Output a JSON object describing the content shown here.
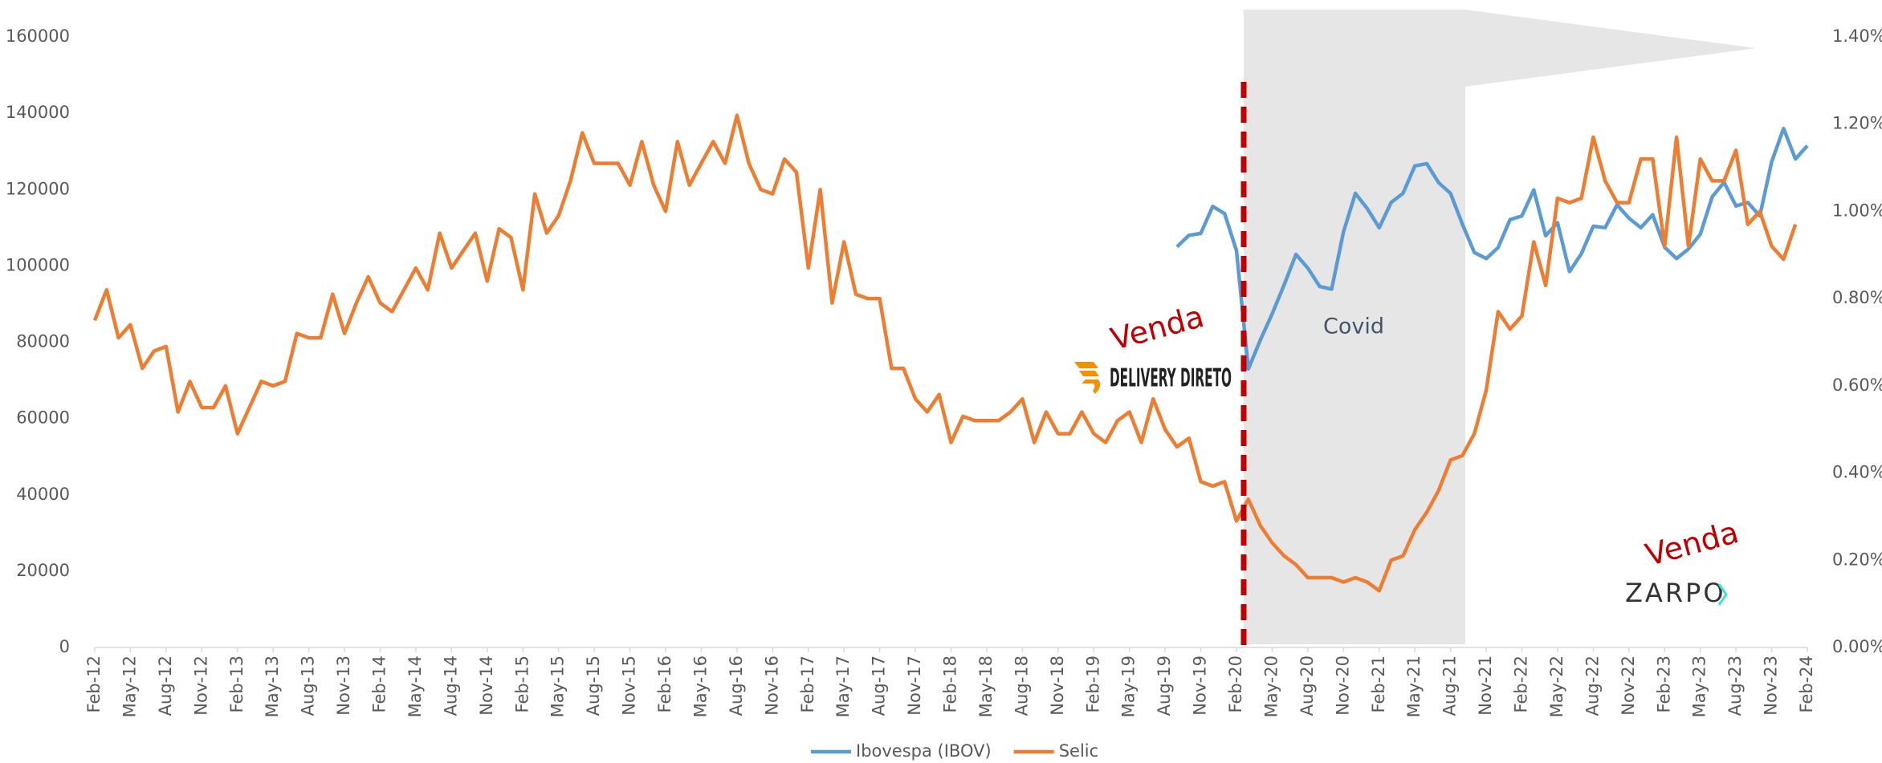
{
  "chart_data": {
    "type": "line",
    "categories": [
      "Feb-12",
      null,
      null,
      "May-12",
      null,
      null,
      "Aug-12",
      null,
      null,
      "Nov-12",
      null,
      null,
      "Feb-13",
      null,
      null,
      "May-13",
      null,
      null,
      "Aug-13",
      null,
      null,
      "Nov-13",
      null,
      null,
      "Feb-14",
      null,
      null,
      "May-14",
      null,
      null,
      "Aug-14",
      null,
      null,
      "Nov-14",
      null,
      null,
      "Feb-15",
      null,
      null,
      "May-15",
      null,
      null,
      "Aug-15",
      null,
      null,
      "Nov-15",
      null,
      null,
      "Feb-16",
      null,
      null,
      "May-16",
      null,
      null,
      "Aug-16",
      null,
      null,
      "Nov-16",
      null,
      null,
      "Feb-17",
      null,
      null,
      "May-17",
      null,
      null,
      "Aug-17",
      null,
      null,
      "Nov-17",
      null,
      null,
      "Feb-18",
      null,
      null,
      "May-18",
      null,
      null,
      "Aug-18",
      null,
      null,
      "Nov-18",
      null,
      null,
      "Feb-19",
      null,
      null,
      "May-19",
      null,
      null,
      "Aug-19",
      null,
      null,
      "Nov-19",
      null,
      null,
      "Feb-20",
      null,
      null,
      "May-20",
      null,
      null,
      "Aug-20",
      null,
      null,
      "Nov-20",
      null,
      null,
      "Feb-21",
      null,
      null,
      "May-21",
      null,
      null,
      "Aug-21",
      null,
      null,
      "Nov-21",
      null,
      null,
      "Feb-22",
      null,
      null,
      "May-22",
      null,
      null,
      "Aug-22",
      null,
      null,
      "Nov-22",
      null,
      null,
      "Feb-23",
      null,
      null,
      "May-23",
      null,
      null,
      "Aug-23",
      null,
      null,
      "Nov-23",
      null,
      null,
      "Feb-24"
    ],
    "series": [
      {
        "name": "Ibovespa (IBOV)",
        "color": "#5b9bd5",
        "values": [
          null,
          null,
          null,
          null,
          null,
          null,
          null,
          null,
          null,
          null,
          null,
          null,
          null,
          null,
          null,
          null,
          null,
          null,
          null,
          null,
          null,
          null,
          null,
          null,
          null,
          null,
          null,
          null,
          null,
          null,
          null,
          null,
          null,
          null,
          null,
          null,
          null,
          null,
          null,
          null,
          null,
          null,
          null,
          null,
          null,
          null,
          null,
          null,
          null,
          null,
          null,
          null,
          null,
          null,
          null,
          null,
          null,
          null,
          null,
          null,
          null,
          null,
          null,
          null,
          null,
          null,
          null,
          null,
          null,
          null,
          null,
          null,
          null,
          null,
          null,
          null,
          null,
          null,
          null,
          null,
          null,
          null,
          null,
          null,
          null,
          null,
          null,
          null,
          null,
          null,
          null,
          105000,
          108000,
          108500,
          115600,
          113700,
          104000,
          73000,
          80500,
          87400,
          95000,
          103000,
          99400,
          94600,
          93900,
          108900,
          119000,
          115000,
          110000,
          116600,
          119000,
          126200,
          126800,
          121800,
          119000,
          110900,
          103500,
          101900,
          104800,
          112100,
          113100,
          119900,
          107900,
          111300,
          98500,
          103200,
          110400,
          110000,
          116000,
          112500,
          110000,
          113400,
          104900,
          101900,
          104400,
          108300,
          118100,
          121900,
          115700,
          116600,
          113100,
          127300,
          136000,
          128000,
          131500
        ]
      },
      {
        "name": "Selic",
        "color": "#ed7d31",
        "axis": "y2",
        "values": [
          0.75,
          0.82,
          0.71,
          0.74,
          0.64,
          0.68,
          0.69,
          0.54,
          0.61,
          0.55,
          0.55,
          0.6,
          0.49,
          0.55,
          0.61,
          0.6,
          0.61,
          0.72,
          0.71,
          0.71,
          0.81,
          0.72,
          0.79,
          0.85,
          0.79,
          0.77,
          0.82,
          0.87,
          0.82,
          0.95,
          0.87,
          0.91,
          0.95,
          0.84,
          0.96,
          0.94,
          0.82,
          1.04,
          0.95,
          0.99,
          1.07,
          1.18,
          1.11,
          1.11,
          1.11,
          1.06,
          1.16,
          1.06,
          1.0,
          1.16,
          1.06,
          1.11,
          1.16,
          1.11,
          1.22,
          1.11,
          1.05,
          1.04,
          1.12,
          1.09,
          0.87,
          1.05,
          0.79,
          0.93,
          0.81,
          0.8,
          0.8,
          0.64,
          0.64,
          0.57,
          0.54,
          0.58,
          0.47,
          0.53,
          0.52,
          0.52,
          0.52,
          0.54,
          0.57,
          0.47,
          0.54,
          0.49,
          0.49,
          0.54,
          0.49,
          0.47,
          0.52,
          0.54,
          0.47,
          0.57,
          0.5,
          0.46,
          0.48,
          0.38,
          0.37,
          0.38,
          0.29,
          0.34,
          0.28,
          0.24,
          0.21,
          0.19,
          0.16,
          0.16,
          0.16,
          0.15,
          0.16,
          0.15,
          0.13,
          0.2,
          0.21,
          0.27,
          0.31,
          0.36,
          0.43,
          0.44,
          0.49,
          0.59,
          0.77,
          0.73,
          0.76,
          0.93,
          0.83,
          1.03,
          1.02,
          1.03,
          1.17,
          1.07,
          1.02,
          1.02,
          1.12,
          1.12,
          0.92,
          1.17,
          0.92,
          1.12,
          1.07,
          1.07,
          1.14,
          0.97,
          1.0,
          0.92,
          0.89,
          0.97,
          null
        ]
      }
    ],
    "ylim": [
      0,
      160000
    ],
    "yticks": [
      0,
      20000,
      40000,
      60000,
      80000,
      100000,
      120000,
      140000,
      160000
    ],
    "y2lim": [
      0,
      1.4
    ],
    "y2ticks": [
      {
        "value": 0,
        "label": "0.00%"
      },
      {
        "value": 0.2,
        "label": "0.20%"
      },
      {
        "value": 0.4,
        "label": "0.40%"
      },
      {
        "value": 0.6,
        "label": "0.60%"
      },
      {
        "value": 0.8,
        "label": "0.80%"
      },
      {
        "value": 1.0,
        "label": "1.00%"
      },
      {
        "value": 1.2,
        "label": "1.20%"
      },
      {
        "value": 1.4,
        "label": "1.40%"
      }
    ],
    "annotations": [
      "Venda",
      "Covid",
      "Venda",
      "DELIVERY DIRETO",
      "ZARPO"
    ],
    "legend": "bottom"
  }
}
